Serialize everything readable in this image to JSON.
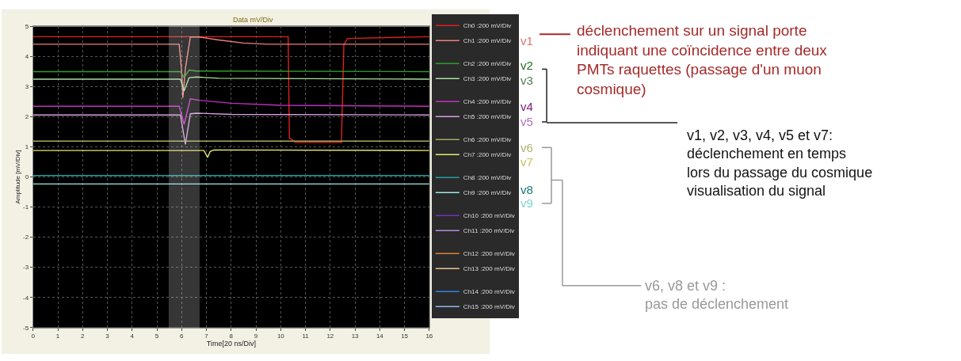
{
  "chart_data": {
    "type": "line",
    "title": "Data mV/Div",
    "xlabel": "Time[20 ns/Div]",
    "ylabel": "Amplitude [mV/Div]",
    "xlim": [
      0,
      16
    ],
    "xticks": [
      0,
      1,
      2,
      3,
      4,
      5,
      6,
      7,
      8,
      9,
      10,
      11,
      12,
      13,
      14,
      15,
      16
    ],
    "ylim": [
      -5,
      5
    ],
    "yticks": [
      -5,
      -4,
      -3,
      -2,
      -1,
      0,
      1,
      2,
      3,
      4,
      5
    ],
    "grid": true,
    "legend": "right",
    "marker": "none",
    "line_style": "solid",
    "bands": [
      {
        "axis": "x",
        "from": 5.5,
        "to": 6.7,
        "color": "#d8d8d8"
      }
    ],
    "series": [
      {
        "name": "Ch0 :200 mV/Div",
        "color": "#e02020",
        "x": [
          0,
          10.3,
          10.35,
          10.6,
          12.45,
          12.55,
          12.7,
          16
        ],
        "values": [
          4.66,
          4.66,
          1.3,
          1.15,
          1.15,
          4.4,
          4.6,
          4.66
        ]
      },
      {
        "name": "Ch1 :200 mV/Div",
        "color": "#f08080",
        "x": [
          0,
          5.9,
          6.0,
          6.05,
          6.15,
          6.35,
          6.7,
          7.5,
          8.5,
          9.5,
          16
        ],
        "values": [
          4.41,
          4.41,
          3.5,
          2.63,
          3.6,
          4.65,
          4.65,
          4.55,
          4.45,
          4.41,
          4.41
        ]
      },
      {
        "name": "Ch2 :200 mV/Div",
        "color": "#2e9e2e",
        "x": [
          0,
          5.95,
          6.1,
          6.3,
          6.6,
          16
        ],
        "values": [
          3.5,
          3.5,
          3.3,
          3.55,
          3.52,
          3.5
        ]
      },
      {
        "name": "Ch3 :200 mV/Div",
        "color": "#a8e0a0",
        "x": [
          0,
          5.95,
          6.1,
          6.3,
          6.6,
          7.5,
          16
        ],
        "values": [
          3.25,
          3.25,
          2.86,
          3.3,
          3.32,
          3.28,
          3.25
        ]
      },
      {
        "name": "Ch4 :200 mV/Div",
        "color": "#c030c0",
        "x": [
          0,
          5.9,
          6.1,
          6.35,
          6.7,
          8,
          10,
          16
        ],
        "values": [
          2.35,
          2.35,
          1.75,
          2.6,
          2.55,
          2.45,
          2.38,
          2.35
        ]
      },
      {
        "name": "Ch5 :200 mV/Div",
        "color": "#d8a0e0",
        "x": [
          0,
          5.95,
          6.15,
          6.35,
          6.6,
          8,
          16
        ],
        "values": [
          2.06,
          2.06,
          1.08,
          2.1,
          2.12,
          2.08,
          2.06
        ]
      },
      {
        "name": "Ch6 :200 mV/Div",
        "color": "#a8a860",
        "x": [
          0,
          16
        ],
        "values": [
          1.19,
          1.19
        ]
      },
      {
        "name": "Ch7 :200 mV/Div",
        "color": "#e8e870",
        "x": [
          0,
          6.9,
          7.05,
          7.15,
          7.3,
          16
        ],
        "values": [
          0.88,
          0.88,
          0.65,
          0.85,
          0.9,
          0.88
        ]
      },
      {
        "name": "Ch8 :200 mV/Div",
        "color": "#20a0a0",
        "x": [
          0,
          16
        ],
        "values": [
          0.05,
          0.05
        ]
      },
      {
        "name": "Ch9 :200 mV/Div",
        "color": "#a0e8e8",
        "x": [
          0,
          16
        ],
        "values": [
          -0.23,
          -0.23
        ]
      },
      {
        "name": "Ch10 :200 mV/Div",
        "color": "#7030c0"
      },
      {
        "name": "Ch11 :200 mV/Div",
        "color": "#b090e0"
      },
      {
        "name": "Ch12 :200 mV/Div",
        "color": "#e08030"
      },
      {
        "name": "Ch13 :200 mV/Div",
        "color": "#f0c090"
      },
      {
        "name": "Ch14 :200 mV/Div",
        "color": "#3080e0"
      },
      {
        "name": "Ch15 :200 mV/Div",
        "color": "#90b8e8"
      }
    ],
    "annotations": [
      "déclenchement sur un signal porte\nindiquant une coïncidence entre deux\nPMTs raquettes (passage d'un muon\ncosmique)",
      "v1",
      "v2",
      "v3",
      "v4",
      "v5",
      "v6",
      "v7",
      "v8",
      "v9",
      "v1, v2, v3, v4, v5 et v7:\ndéclenchement en temps\nlors du passage du cosmique\nvisualisation du signal",
      "v6, v8 et v9 :\npas de déclenchement"
    ]
  }
}
